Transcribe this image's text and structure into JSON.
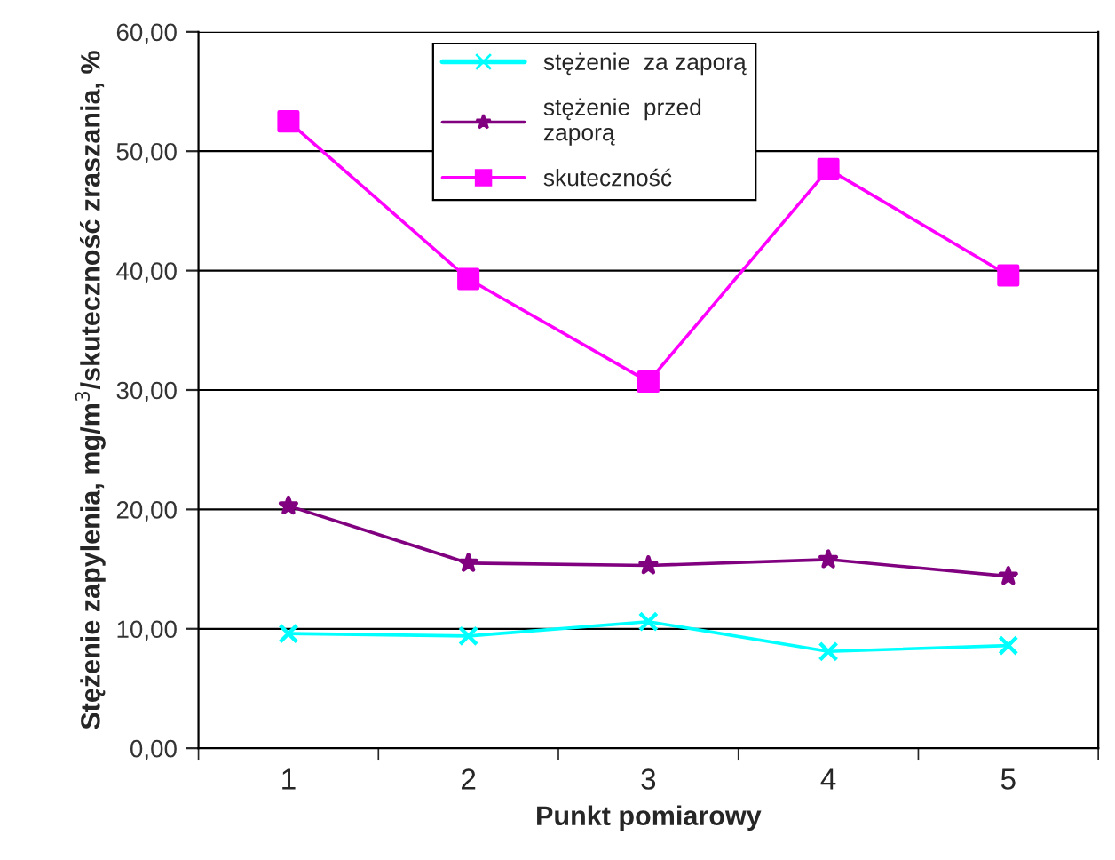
{
  "chart_data": {
    "type": "line",
    "xlabel": "Punkt pomiarowy",
    "ylabel": "Stężenie zapylenia, mg/m$^{3}$/skuteczność zraszania, %",
    "categories": [
      "1",
      "2",
      "3",
      "4",
      "5"
    ],
    "series": [
      {
        "name": "stężenie  za zaporą",
        "color": "#00ffff",
        "marker": "cross",
        "values": [
          9.6,
          9.4,
          10.6,
          8.1,
          8.6
        ]
      },
      {
        "name": "stężenie  przed\nzaporą",
        "color": "#800080",
        "marker": "star",
        "values": [
          20.3,
          15.5,
          15.3,
          15.8,
          14.4
        ]
      },
      {
        "name": "skuteczność",
        "color": "#ff00ff",
        "marker": "square",
        "values": [
          52.5,
          39.3,
          30.7,
          48.5,
          39.6
        ]
      }
    ],
    "ylim": [
      0,
      60
    ],
    "yticks": [
      {
        "value": 0,
        "label": "0,00"
      },
      {
        "value": 10,
        "label": "10,00"
      },
      {
        "value": 20,
        "label": "20,00"
      },
      {
        "value": 30,
        "label": "30,00"
      },
      {
        "value": 40,
        "label": "40,00"
      },
      {
        "value": 50,
        "label": "50,00"
      },
      {
        "value": 60,
        "label": "60,00"
      }
    ],
    "grid": "y",
    "legend": "top",
    "line_style": "solid"
  }
}
